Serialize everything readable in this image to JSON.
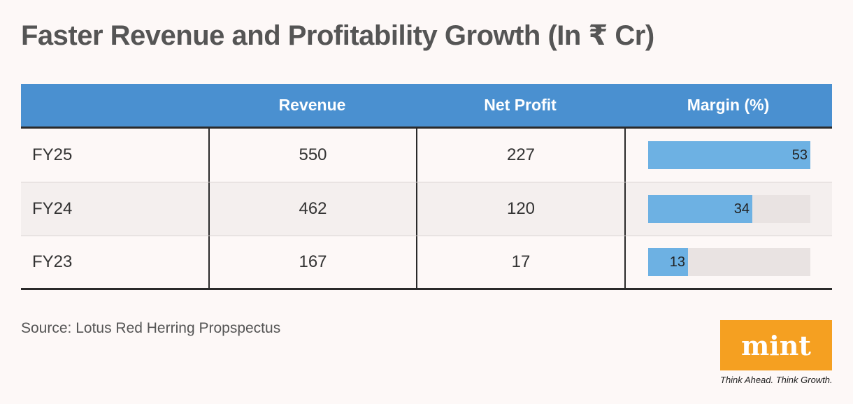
{
  "title": "Faster Revenue and Profitability Growth (In ₹ Cr)",
  "chart_data": {
    "type": "table",
    "columns": [
      "",
      "Revenue",
      "Net Profit",
      "Margin (%)"
    ],
    "rows": [
      {
        "year": "FY25",
        "revenue": "550",
        "net_profit": "227",
        "margin": 53
      },
      {
        "year": "FY24",
        "revenue": "462",
        "net_profit": "120",
        "margin": 34
      },
      {
        "year": "FY23",
        "revenue": "167",
        "net_profit": "17",
        "margin": 13
      }
    ],
    "margin_scale_max": 53
  },
  "source": "Source: Lotus Red Herring Propspectus",
  "logo": {
    "text": "mint",
    "tagline": "Think Ahead. Think Growth."
  },
  "colors": {
    "header_bg": "#4a90d0",
    "bar_fill": "#6db1e3",
    "bar_track": "#e9e3e2",
    "logo_bg": "#f5a021"
  }
}
